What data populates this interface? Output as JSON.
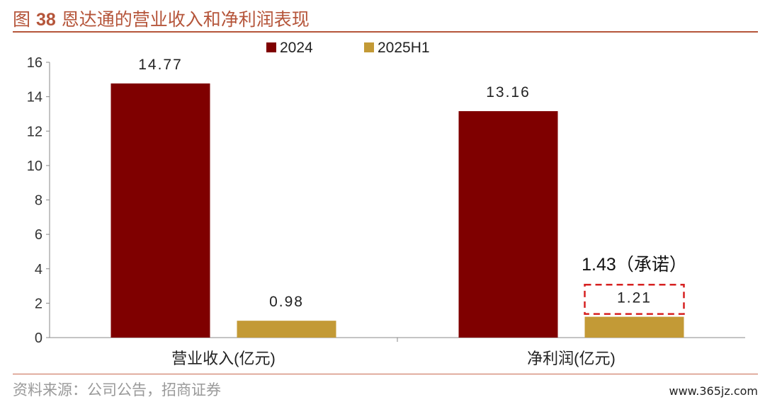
{
  "figure": {
    "prefix": "图",
    "number": "38",
    "title": "恩达通的营业收入和净利润表现"
  },
  "source": "资料来源：公司公告，招商证券",
  "watermark": "www.365jz.com",
  "colors": {
    "s2024": "#7f0000",
    "s2025": "#c39a36",
    "accent": "#b5553a",
    "dashed": "#d62020"
  },
  "chart_data": {
    "type": "bar",
    "categories": [
      "营业收入(亿元)",
      "净利润(亿元)"
    ],
    "series": [
      {
        "name": "2024",
        "values": [
          14.77,
          13.16
        ],
        "labels": [
          "14.77",
          "13.16"
        ]
      },
      {
        "name": "2025H1",
        "values": [
          0.98,
          1.21
        ],
        "labels": [
          "0.98",
          "1.21"
        ]
      }
    ],
    "ylim": [
      0,
      16
    ],
    "yticks": [
      "0",
      "2",
      "4",
      "6",
      "8",
      "10",
      "12",
      "14",
      "16"
    ],
    "legend_position": "top-center",
    "grid": false,
    "annotation": {
      "text": "1.43（承诺）",
      "value": 1.43,
      "series": "2025H1",
      "category": "净利润(亿元)"
    }
  }
}
